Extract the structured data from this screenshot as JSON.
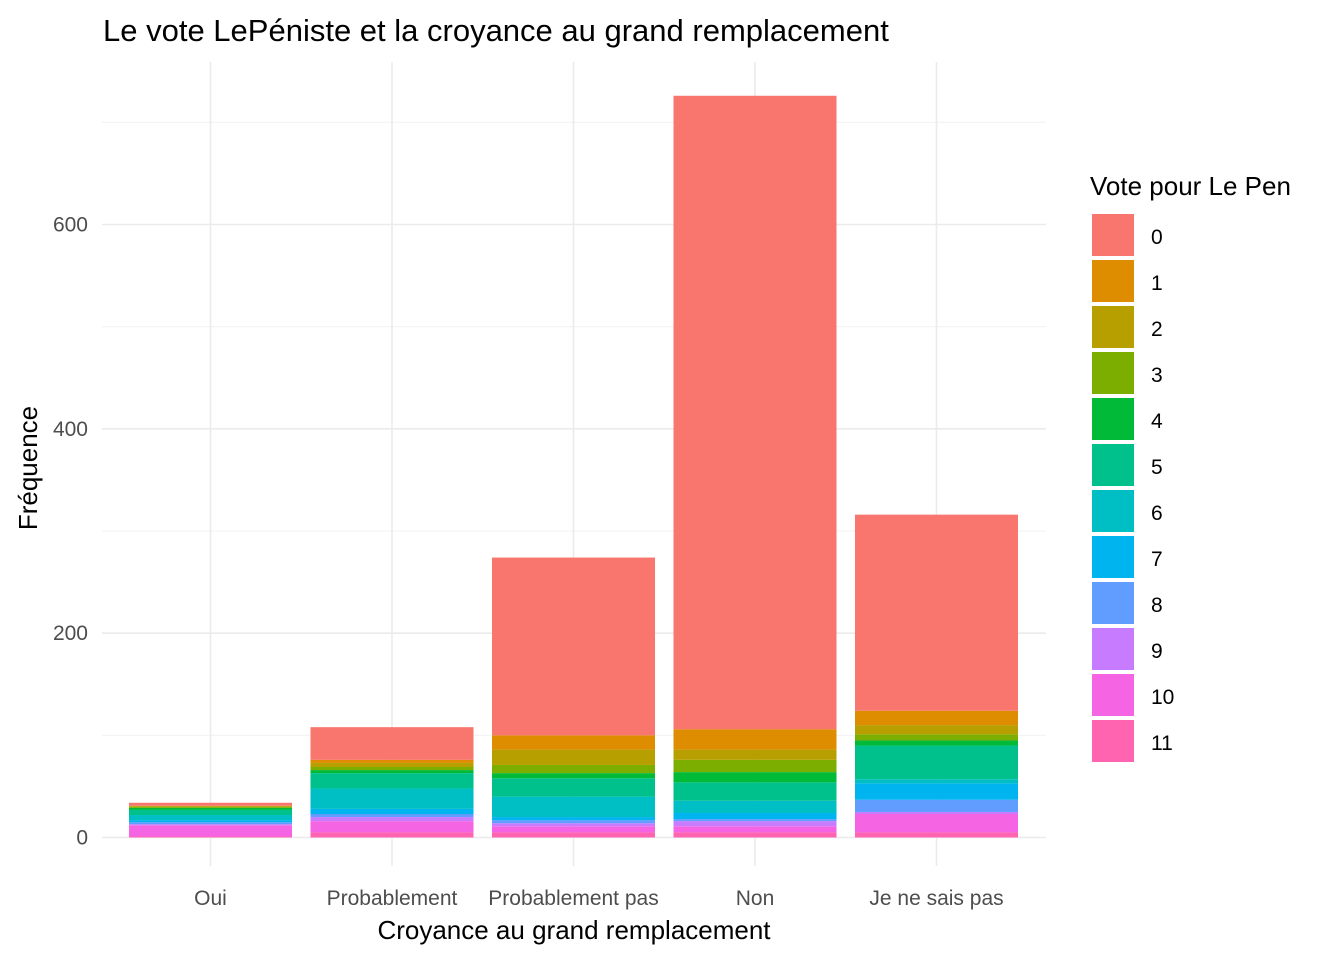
{
  "chart_data": {
    "type": "bar",
    "stacked": true,
    "title": "Le vote LePéniste et la croyance au grand remplacement",
    "xlabel": "Croyance au grand remplacement",
    "ylabel": "Fréquence",
    "ylim": [
      0,
      750
    ],
    "yticks": [
      0,
      200,
      400,
      600
    ],
    "grid": true,
    "legend": {
      "title": "Vote pour Le Pen",
      "position": "right"
    },
    "categories": [
      "Oui",
      "Probablement",
      "Probablement pas",
      "Non",
      "Je ne sais pas"
    ],
    "series": [
      {
        "name": "0",
        "color": "#F8766D",
        "values": [
          3,
          32,
          174,
          620,
          192
        ]
      },
      {
        "name": "1",
        "color": "#DE8C00",
        "values": [
          0,
          3,
          14,
          20,
          14
        ]
      },
      {
        "name": "2",
        "color": "#B79F00",
        "values": [
          1,
          4,
          15,
          10,
          9
        ]
      },
      {
        "name": "3",
        "color": "#7CAE00",
        "values": [
          1,
          3,
          8,
          12,
          6
        ]
      },
      {
        "name": "4",
        "color": "#00BA38",
        "values": [
          2,
          3,
          5,
          10,
          5
        ]
      },
      {
        "name": "5",
        "color": "#00C08B",
        "values": [
          5,
          15,
          18,
          18,
          33
        ]
      },
      {
        "name": "6",
        "color": "#00BFC4",
        "values": [
          5,
          20,
          20,
          12,
          4
        ]
      },
      {
        "name": "7",
        "color": "#00B4F0",
        "values": [
          2,
          5,
          3,
          6,
          16
        ]
      },
      {
        "name": "8",
        "color": "#619CFF",
        "values": [
          2,
          3,
          3,
          2,
          12
        ]
      },
      {
        "name": "9",
        "color": "#C77CFF",
        "values": [
          1,
          4,
          3,
          5,
          2
        ]
      },
      {
        "name": "10",
        "color": "#F564E3",
        "values": [
          11,
          11,
          6,
          6,
          18
        ]
      },
      {
        "name": "11",
        "color": "#FF64B0",
        "values": [
          1,
          5,
          5,
          5,
          5
        ]
      }
    ]
  }
}
